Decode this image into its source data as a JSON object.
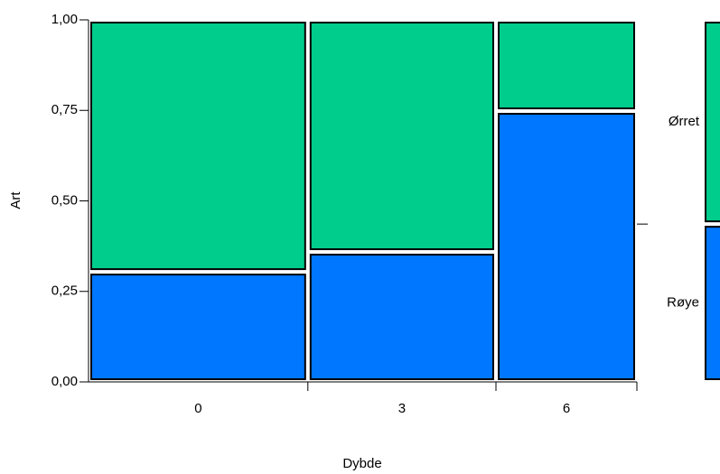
{
  "chart_data": {
    "type": "mosaic",
    "x_label": "Dybde",
    "y_label": "Art",
    "categories": [
      "0",
      "3",
      "6"
    ],
    "widths": [
      0.4,
      0.343,
      0.257
    ],
    "series": [
      {
        "name": "Røye",
        "color": "#0077ff",
        "values": [
          0.304,
          0.359,
          0.748
        ],
        "overall": 0.436
      },
      {
        "name": "Ørret",
        "color": "#00cc8c",
        "values": [
          0.696,
          0.641,
          0.252
        ],
        "overall": 0.564
      }
    ],
    "ylim": [
      0,
      1
    ],
    "yticks": [
      {
        "value": 0,
        "label": "0,00"
      },
      {
        "value": 0.25,
        "label": "0,25"
      },
      {
        "value": 0.5,
        "label": "0,50"
      },
      {
        "value": 0.75,
        "label": "0,75"
      },
      {
        "value": 1,
        "label": "1,00"
      }
    ]
  }
}
